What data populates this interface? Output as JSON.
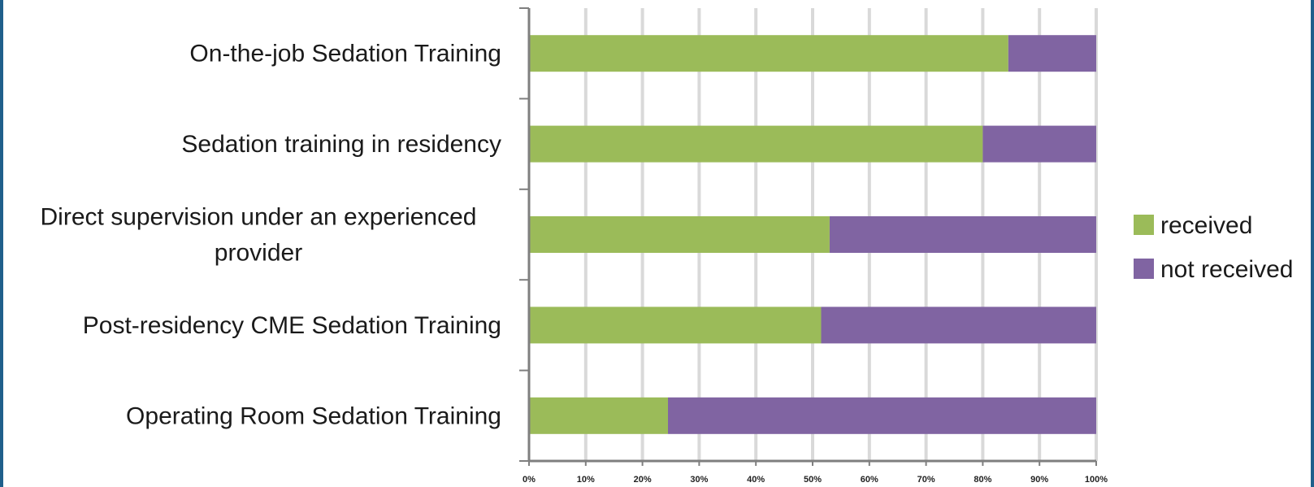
{
  "chart_data": {
    "type": "bar",
    "orientation": "horizontal",
    "stacked": true,
    "categories": [
      [
        "On-the-job Sedation Training"
      ],
      [
        "Sedation training in residency"
      ],
      [
        "Direct supervision under an experienced",
        "provider"
      ],
      [
        "Post-residency CME Sedation Training"
      ],
      [
        "Operating Room Sedation Training"
      ]
    ],
    "series": [
      {
        "name": "received",
        "color": "#9bbb59",
        "values": [
          84.5,
          80,
          53,
          51.5,
          24.5
        ]
      },
      {
        "name": "not received",
        "color": "#8064a2",
        "values": [
          15.5,
          20,
          47,
          48.5,
          75.5
        ]
      }
    ],
    "xlim": [
      0,
      100
    ],
    "xticks": [
      "0%",
      "10%",
      "20%",
      "30%",
      "40%",
      "50%",
      "60%",
      "70%",
      "80%",
      "90%",
      "100%"
    ],
    "grid": true,
    "legend_position": "right"
  }
}
